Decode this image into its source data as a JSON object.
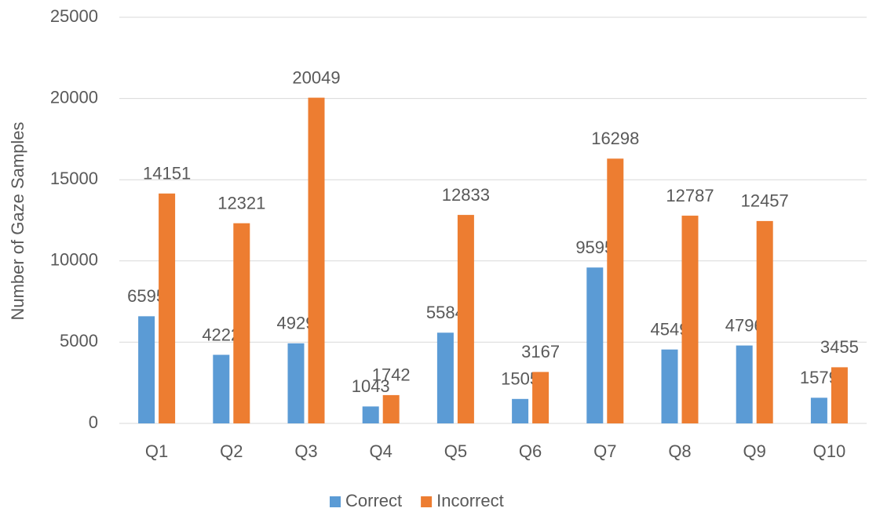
{
  "chart_data": {
    "type": "bar",
    "y_label": "Number of Gaze Samples",
    "categories": [
      "Q1",
      "Q2",
      "Q3",
      "Q4",
      "Q5",
      "Q6",
      "Q7",
      "Q8",
      "Q9",
      "Q10"
    ],
    "series": [
      {
        "name": "Correct",
        "color": "#5b9bd5",
        "values": [
          6595,
          4222,
          4929,
          1043,
          5584,
          1505,
          9595,
          4549,
          4796,
          1579
        ]
      },
      {
        "name": "Incorrect",
        "color": "#ed7d31",
        "values": [
          14151,
          12321,
          20049,
          1742,
          12833,
          3167,
          16298,
          12787,
          12457,
          3455
        ]
      }
    ],
    "ylim": [
      0,
      25000
    ],
    "yticks": [
      0,
      5000,
      10000,
      15000,
      20000,
      25000
    ],
    "grid": true,
    "legend": "bottom"
  }
}
